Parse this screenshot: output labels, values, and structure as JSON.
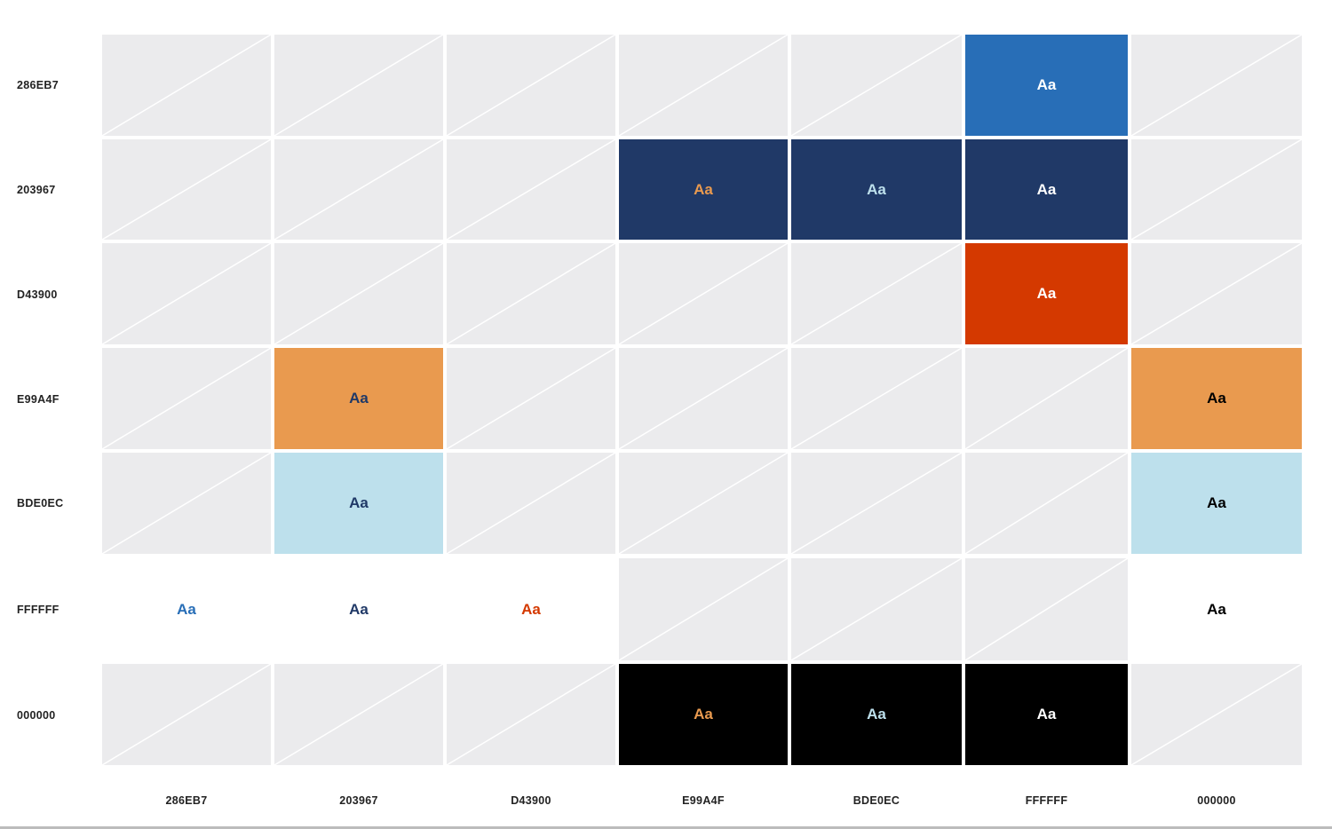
{
  "colors": [
    "286EB7",
    "203967",
    "D43900",
    "E99A4F",
    "BDE0EC",
    "FFFFFF",
    "000000"
  ],
  "row_labels": [
    "286EB7",
    "203967",
    "D43900",
    "E99A4F",
    "BDE0EC",
    "FFFFFF",
    "000000"
  ],
  "column_labels": [
    "286EB7",
    "203967",
    "D43900",
    "E99A4F",
    "BDE0EC",
    "FFFFFF",
    "000000"
  ],
  "sample_text": "Aa",
  "disabled_fill": "#EBEBED",
  "accessible_pairs": [
    {
      "background": "286EB7",
      "foreground": "FFFFFF",
      "text": "Aa"
    },
    {
      "background": "203967",
      "foreground": "E99A4F",
      "text": "Aa"
    },
    {
      "background": "203967",
      "foreground": "BDE0EC",
      "text": "Aa"
    },
    {
      "background": "203967",
      "foreground": "FFFFFF",
      "text": "Aa"
    },
    {
      "background": "D43900",
      "foreground": "FFFFFF",
      "text": "Aa"
    },
    {
      "background": "E99A4F",
      "foreground": "203967",
      "text": "Aa"
    },
    {
      "background": "E99A4F",
      "foreground": "000000",
      "text": "Aa"
    },
    {
      "background": "BDE0EC",
      "foreground": "203967",
      "text": "Aa"
    },
    {
      "background": "BDE0EC",
      "foreground": "000000",
      "text": "Aa"
    },
    {
      "background": "FFFFFF",
      "foreground": "286EB7",
      "text": "Aa"
    },
    {
      "background": "FFFFFF",
      "foreground": "203967",
      "text": "Aa"
    },
    {
      "background": "FFFFFF",
      "foreground": "D43900",
      "text": "Aa"
    },
    {
      "background": "FFFFFF",
      "foreground": "000000",
      "text": "Aa"
    },
    {
      "background": "000000",
      "foreground": "E99A4F",
      "text": "Aa"
    },
    {
      "background": "000000",
      "foreground": "BDE0EC",
      "text": "Aa"
    },
    {
      "background": "000000",
      "foreground": "FFFFFF",
      "text": "Aa"
    }
  ]
}
